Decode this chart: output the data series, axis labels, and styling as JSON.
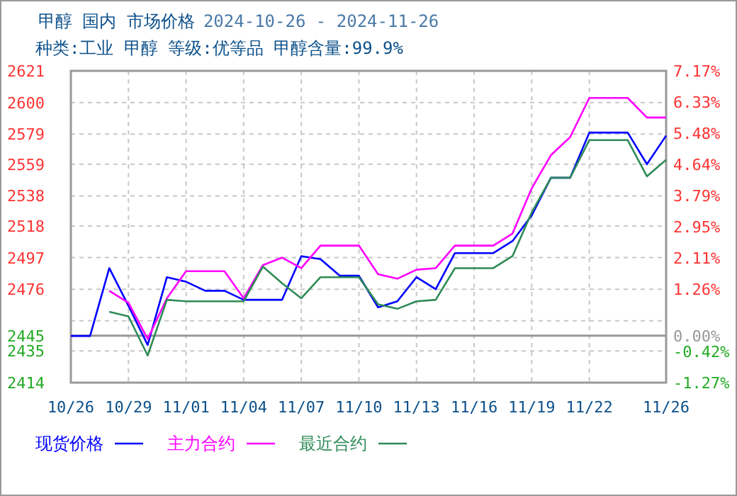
{
  "chart_data": {
    "type": "line",
    "title": "甲醇 国内 市场价格",
    "subtitle": "2024-10-26 - 2024-11-26",
    "annotations": [
      "种类:工业 甲醇 等级:优等品 甲醇含量:99.9%"
    ],
    "x": [
      "2024-10-26",
      "2024-10-27",
      "2024-10-28",
      "2024-10-29",
      "2024-10-30",
      "2024-10-31",
      "2024-11-01",
      "2024-11-02",
      "2024-11-03",
      "2024-11-04",
      "2024-11-05",
      "2024-11-06",
      "2024-11-07",
      "2024-11-08",
      "2024-11-09",
      "2024-11-10",
      "2024-11-11",
      "2024-11-12",
      "2024-11-13",
      "2024-11-14",
      "2024-11-15",
      "2024-11-16",
      "2024-11-17",
      "2024-11-18",
      "2024-11-19",
      "2024-11-20",
      "2024-11-21",
      "2024-11-22",
      "2024-11-23",
      "2024-11-24",
      "2024-11-25",
      "2024-11-26"
    ],
    "series": [
      {
        "name": "现货价格",
        "color": "#0000ff",
        "values": [
          2445,
          2445,
          2490,
          2465,
          2439,
          2484,
          2481,
          2475,
          2475,
          2469,
          2469,
          2469,
          2498,
          2496,
          2485,
          2485,
          2464,
          2468,
          2484,
          2476,
          2500,
          2500,
          2500,
          2508,
          2525,
          2550,
          2550,
          2580,
          2580,
          2580,
          2559,
          2578
        ]
      },
      {
        "name": "主力合约",
        "color": "#ff00ff",
        "values": [
          null,
          null,
          2475,
          2467,
          2443,
          2470,
          2488,
          2488,
          2488,
          2470,
          2492,
          2497,
          2490,
          2505,
          2505,
          2505,
          2486,
          2483,
          2489,
          2490,
          2505,
          2505,
          2505,
          2513,
          2543,
          2565,
          2577,
          2603,
          2603,
          2603,
          2590,
          2590
        ]
      },
      {
        "name": "最近合约",
        "color": "#2e8b57",
        "values": [
          null,
          null,
          2461,
          2458,
          2432,
          2469,
          2468,
          2468,
          2468,
          2468,
          2491,
          2480,
          2470,
          2484,
          2484,
          2484,
          2466,
          2463,
          2468,
          2469,
          2490,
          2490,
          2490,
          2498,
          2527,
          2550,
          2550,
          2575,
          2575,
          2575,
          2551,
          2562
        ]
      }
    ],
    "xlim": [
      "2024-10-26",
      "2024-11-26"
    ],
    "xticks": [
      {
        "value": "2024-10-26",
        "label": "10/26"
      },
      {
        "value": "2024-10-29",
        "label": "10/29"
      },
      {
        "value": "2024-11-01",
        "label": "11/01"
      },
      {
        "value": "2024-11-04",
        "label": "11/04"
      },
      {
        "value": "2024-11-07",
        "label": "11/07"
      },
      {
        "value": "2024-11-10",
        "label": "11/10"
      },
      {
        "value": "2024-11-13",
        "label": "11/13"
      },
      {
        "value": "2024-11-16",
        "label": "11/16"
      },
      {
        "value": "2024-11-19",
        "label": "11/19"
      },
      {
        "value": "2024-11-22",
        "label": "11/22"
      },
      {
        "value": "2024-11-26",
        "label": "11/26"
      }
    ],
    "ylim": [
      2414,
      2621
    ],
    "yticks": [
      2414,
      2435,
      2445,
      {
        "value": 2455,
        "label": null
      },
      2476,
      2497,
      2518,
      2538,
      2559,
      2579,
      2600,
      2621
    ],
    "y2lim": [
      -1.27,
      7.17
    ],
    "y2ticks": [
      {
        "value": -1.27,
        "label": "-1.27%"
      },
      {
        "value": -0.42,
        "label": "-0.42%"
      },
      {
        "value": 0,
        "label": "0.00%"
      },
      {
        "value": 1.26,
        "label": "1.26%"
      },
      {
        "value": 2.11,
        "label": "2.11%"
      },
      {
        "value": 2.95,
        "label": "2.95%"
      },
      {
        "value": 3.79,
        "label": "3.79%"
      },
      {
        "value": 4.64,
        "label": "4.64%"
      },
      {
        "value": 5.48,
        "label": "5.48%"
      },
      {
        "value": 6.33,
        "label": "6.33%"
      },
      {
        "value": 7.17,
        "label": "7.17%"
      }
    ],
    "ref_lines": [
      {
        "axis": "y2",
        "value": 0,
        "color": "#999999"
      }
    ],
    "grid": true,
    "legend": "bottom",
    "marker": "none",
    "line_style": "solid"
  }
}
